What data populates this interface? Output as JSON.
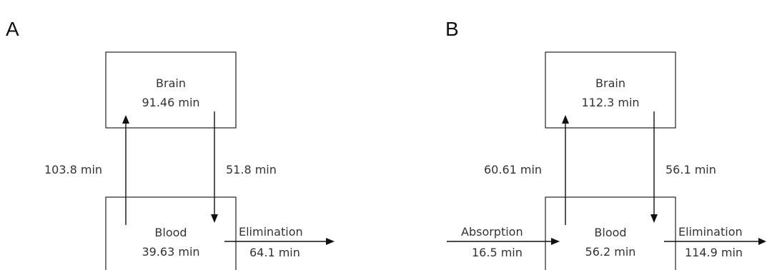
{
  "panels": [
    {
      "letter": "A",
      "brain": {
        "name": "Brain",
        "time": "91.46 min"
      },
      "blood": {
        "name": "Blood",
        "time": "39.63 min"
      },
      "blood_to_brain": "103.8 min",
      "brain_to_blood": "51.8 min",
      "elimination": {
        "label": "Elimination",
        "time": "64.1 min"
      }
    },
    {
      "letter": "B",
      "brain": {
        "name": "Brain",
        "time": "112.3 min"
      },
      "blood": {
        "name": "Blood",
        "time": "56.2 min"
      },
      "blood_to_brain": "60.61 min",
      "brain_to_blood": "56.1 min",
      "absorption": {
        "label": "Absorption",
        "time": "16.5 min"
      },
      "elimination": {
        "label": "Elimination",
        "time": "114.9 min"
      }
    }
  ]
}
